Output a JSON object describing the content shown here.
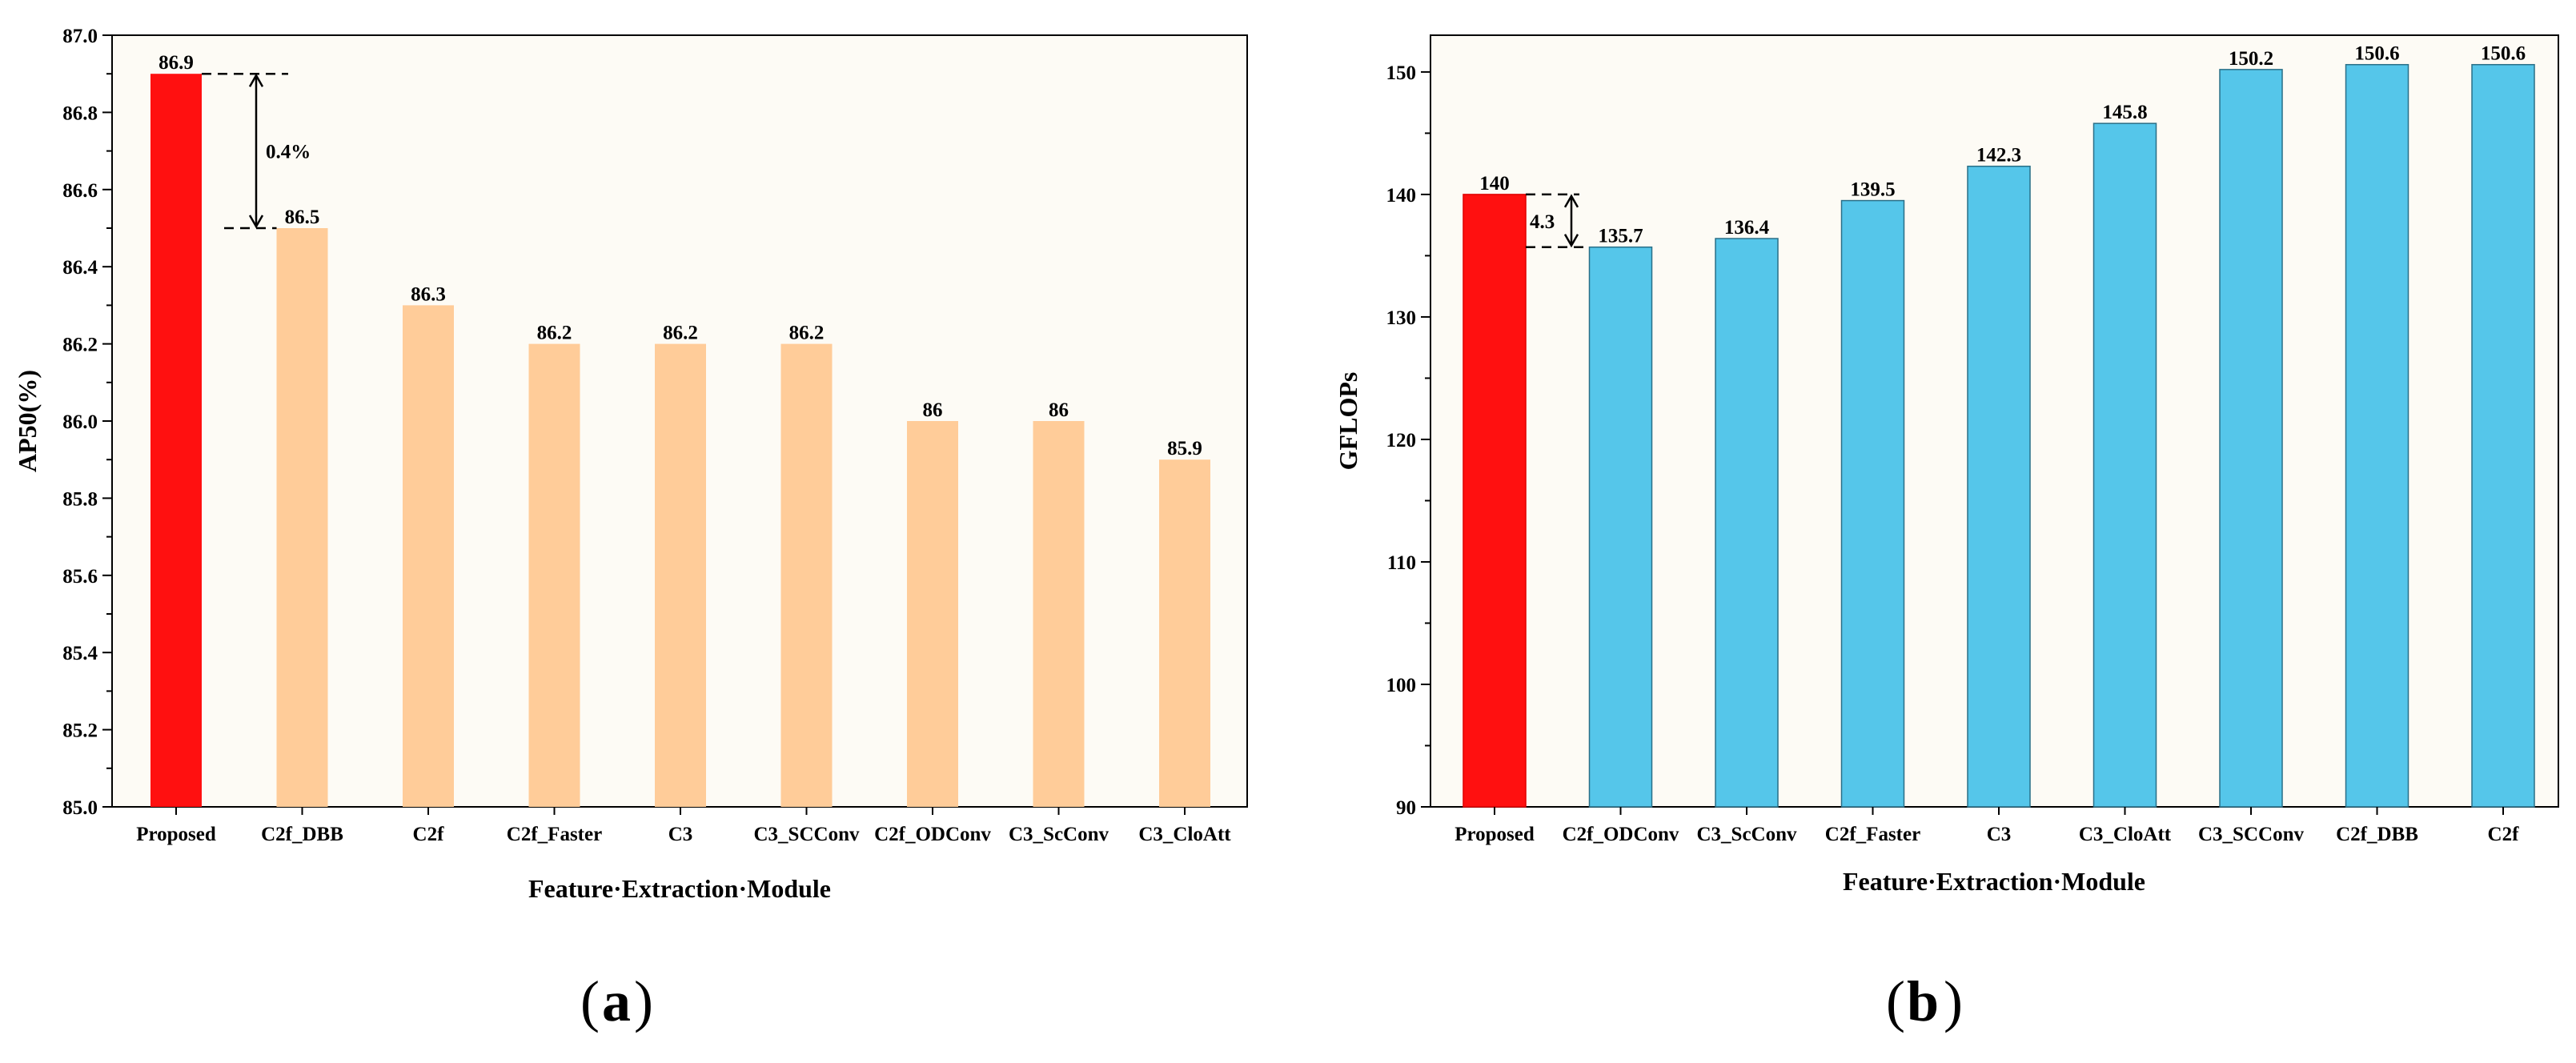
{
  "chart_data": [
    {
      "id": "a",
      "type": "bar",
      "panel_label": "a",
      "title": "",
      "xlabel": "Feature·Extraction·Module",
      "ylabel": "AP50(%)",
      "ylim": [
        85.0,
        87.0
      ],
      "yticks": [
        "85.0",
        "85.2",
        "85.4",
        "85.6",
        "85.8",
        "86.0",
        "86.2",
        "86.4",
        "86.6",
        "86.8",
        "87.0"
      ],
      "categories": [
        "Proposed",
        "C2f_DBB",
        "C2f",
        "C2f_Faster",
        "C3",
        "C3_SCConv",
        "C2f_ODConv",
        "C3_ScConv",
        "C3_CloAtt"
      ],
      "values": [
        86.9,
        86.5,
        86.3,
        86.2,
        86.2,
        86.2,
        86.0,
        86.0,
        85.9
      ],
      "value_labels": [
        "86.9",
        "86.5",
        "86.3",
        "86.2",
        "86.2",
        "86.2",
        "86",
        "86",
        "85.9"
      ],
      "highlight_color": "#ff1010",
      "bar_color": "#ffcc99",
      "annotation": {
        "text": "0.4%",
        "from": 86.9,
        "to": 86.5
      }
    },
    {
      "id": "b",
      "type": "bar",
      "panel_label": "b",
      "title": "",
      "xlabel": "Feature·Extraction·Module",
      "ylabel": "GFLOPs",
      "ylim": [
        90,
        153
      ],
      "yticks": [
        "90",
        "100",
        "110",
        "120",
        "130",
        "140",
        "150"
      ],
      "categories": [
        "Proposed",
        "C2f_ODConv",
        "C3_ScConv",
        "C2f_Faster",
        "C3",
        "C3_CloAtt",
        "C3_SCConv",
        "C2f_DBB",
        "C2f"
      ],
      "values": [
        140,
        135.7,
        136.4,
        139.5,
        142.3,
        145.8,
        150.2,
        150.6,
        150.6
      ],
      "value_labels": [
        "140",
        "135.7",
        "136.4",
        "139.5",
        "142.3",
        "145.8",
        "150.2",
        "150.6",
        "150.6"
      ],
      "highlight_color": "#ff1010",
      "bar_color": "#55c6ea",
      "annotation": {
        "text": "4.3",
        "from": 140,
        "to": 135.7
      }
    }
  ]
}
